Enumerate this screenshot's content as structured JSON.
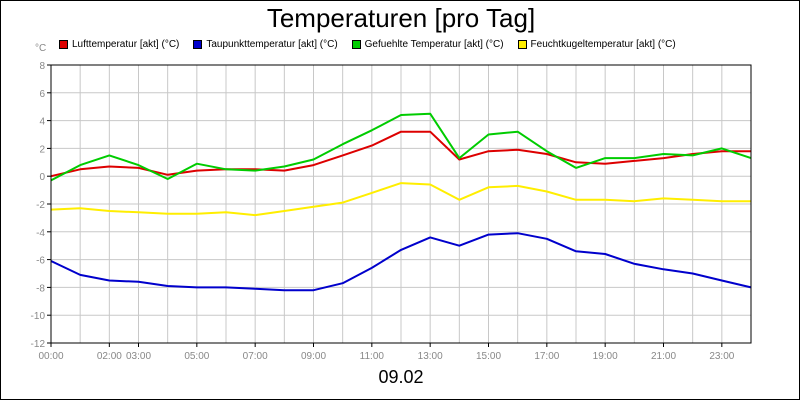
{
  "chart_data": {
    "type": "line",
    "title": "Temperaturen [pro Tag]",
    "ylabel": "°C",
    "xlabel": "09.02",
    "ylim": [
      -12,
      8
    ],
    "yticks": [
      8,
      6,
      4,
      2,
      0,
      -2,
      -4,
      -6,
      -8,
      -10,
      -12
    ],
    "xticks": [
      "00:00",
      "02:00",
      "03:00",
      "05:00",
      "07:00",
      "09:00",
      "11:00",
      "13:00",
      "15:00",
      "17:00",
      "19:00",
      "21:00",
      "23:00"
    ],
    "grid": true,
    "legend_position": "top",
    "x": [
      "00:00",
      "01:00",
      "02:00",
      "03:00",
      "04:00",
      "05:00",
      "06:00",
      "07:00",
      "08:00",
      "09:00",
      "10:00",
      "11:00",
      "12:00",
      "13:00",
      "14:00",
      "15:00",
      "16:00",
      "17:00",
      "18:00",
      "19:00",
      "20:00",
      "21:00",
      "22:00",
      "23:00",
      "24:00"
    ],
    "series": [
      {
        "name": "Lufttemperatur [akt] (°C)",
        "color": "#dd0000",
        "values": [
          0.0,
          0.5,
          0.7,
          0.6,
          0.1,
          0.4,
          0.5,
          0.5,
          0.4,
          0.8,
          1.5,
          2.2,
          3.2,
          3.2,
          1.2,
          1.8,
          1.9,
          1.6,
          1.0,
          0.9,
          1.1,
          1.3,
          1.6,
          1.8,
          1.8
        ]
      },
      {
        "name": "Taupunkttemperatur [akt] (°C)",
        "color": "#0000cc",
        "values": [
          -6.1,
          -7.1,
          -7.5,
          -7.6,
          -7.9,
          -8.0,
          -8.0,
          -8.1,
          -8.2,
          -8.2,
          -7.7,
          -6.6,
          -5.3,
          -4.4,
          -5.0,
          -4.2,
          -4.1,
          -4.5,
          -5.4,
          -5.6,
          -6.3,
          -6.7,
          -7.0,
          -7.5,
          -8.0
        ]
      },
      {
        "name": "Gefuehlte Temperatur [akt] (°C)",
        "color": "#00cc00",
        "values": [
          -0.3,
          0.8,
          1.5,
          0.8,
          -0.2,
          0.9,
          0.5,
          0.4,
          0.7,
          1.2,
          2.3,
          3.3,
          4.4,
          4.5,
          1.3,
          3.0,
          3.2,
          1.8,
          0.6,
          1.3,
          1.3,
          1.6,
          1.5,
          2.0,
          1.3
        ]
      },
      {
        "name": "Feuchtkugeltemperatur [akt] (°C)",
        "color": "#ffee00",
        "values": [
          -2.4,
          -2.3,
          -2.5,
          -2.6,
          -2.7,
          -2.7,
          -2.6,
          -2.8,
          -2.5,
          -2.2,
          -1.9,
          -1.2,
          -0.5,
          -0.6,
          -1.7,
          -0.8,
          -0.7,
          -1.1,
          -1.7,
          -1.7,
          -1.8,
          -1.6,
          -1.7,
          -1.8,
          -1.8
        ]
      }
    ]
  }
}
